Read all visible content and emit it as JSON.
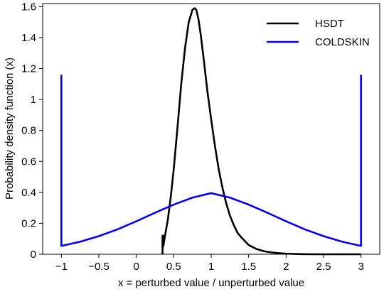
{
  "chart_data": {
    "type": "line",
    "title": "",
    "xlabel": "x = perturbed value / unperturbed value",
    "ylabel": "Probability density function (x)",
    "xlim": [
      -1.25,
      3.25
    ],
    "ylim": [
      0,
      1.62
    ],
    "xticks": [
      -1,
      -0.5,
      0,
      0.5,
      1,
      1.5,
      2,
      2.5,
      3
    ],
    "xtick_labels": [
      "−1",
      "−0.5",
      "0",
      "0.5",
      "1",
      "1.5",
      "2",
      "2.5",
      "3"
    ],
    "yticks": [
      0,
      0.2,
      0.4,
      0.6,
      0.8,
      1,
      1.2,
      1.4,
      1.6
    ],
    "ytick_labels": [
      "0",
      "0.2",
      "0.4",
      "0.6",
      "0.8",
      "1",
      "1.2",
      "1.4",
      "1.6"
    ],
    "grid": false,
    "legend_position": "top-right",
    "series": [
      {
        "name": "HSDT",
        "color": "#000000",
        "x": [
          0.35,
          0.35,
          0.36,
          0.36,
          0.38,
          0.42,
          0.46,
          0.5,
          0.55,
          0.6,
          0.65,
          0.7,
          0.75,
          0.78,
          0.8,
          0.83,
          0.86,
          0.9,
          0.95,
          1.0,
          1.05,
          1.1,
          1.15,
          1.2,
          1.25,
          1.3,
          1.35,
          1.4,
          1.5,
          1.6,
          1.7,
          1.8,
          1.9,
          2.0,
          2.2,
          2.4,
          2.6,
          2.8,
          3.0
        ],
        "y": [
          0.0,
          0.12,
          0.12,
          0.05,
          0.11,
          0.22,
          0.37,
          0.55,
          0.82,
          1.1,
          1.33,
          1.5,
          1.58,
          1.59,
          1.58,
          1.52,
          1.42,
          1.26,
          1.05,
          0.87,
          0.7,
          0.55,
          0.43,
          0.33,
          0.25,
          0.19,
          0.14,
          0.11,
          0.06,
          0.035,
          0.02,
          0.012,
          0.007,
          0.004,
          0.001,
          0.0,
          0.0,
          0.0,
          0.0
        ]
      },
      {
        "name": "COLDSKIN",
        "color": "#0000ee",
        "x": [
          -1.0,
          -1.0,
          -0.75,
          -0.5,
          -0.25,
          0.0,
          0.25,
          0.5,
          0.75,
          1.0,
          1.25,
          1.5,
          1.75,
          2.0,
          2.25,
          2.5,
          2.75,
          3.0,
          3.0
        ],
        "y": [
          1.16,
          0.054,
          0.081,
          0.117,
          0.161,
          0.213,
          0.268,
          0.321,
          0.366,
          0.395,
          0.366,
          0.321,
          0.268,
          0.213,
          0.161,
          0.117,
          0.081,
          0.054,
          1.16
        ]
      }
    ]
  }
}
